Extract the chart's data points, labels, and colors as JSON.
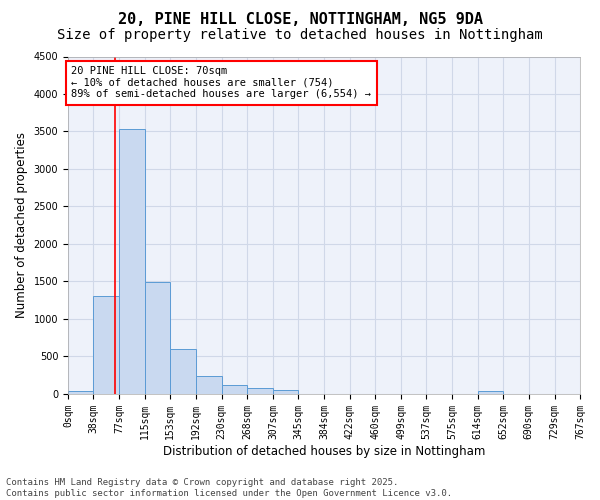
{
  "title_line1": "20, PINE HILL CLOSE, NOTTINGHAM, NG5 9DA",
  "title_line2": "Size of property relative to detached houses in Nottingham",
  "xlabel": "Distribution of detached houses by size in Nottingham",
  "ylabel": "Number of detached properties",
  "bar_edges": [
    0,
    38,
    77,
    115,
    153,
    192,
    230,
    268,
    307,
    345,
    384,
    422,
    460,
    499,
    537,
    575,
    614,
    652,
    690,
    729,
    767
  ],
  "bar_values": [
    40,
    1300,
    3530,
    1490,
    595,
    245,
    120,
    80,
    50,
    0,
    0,
    0,
    0,
    0,
    0,
    0,
    40,
    0,
    0,
    0
  ],
  "bar_color": "#c9d9f0",
  "bar_edge_color": "#5b9bd5",
  "grid_color": "#d0d8e8",
  "background_color": "#eef2fa",
  "property_line_x": 70,
  "property_line_color": "red",
  "annotation_box_text": "20 PINE HILL CLOSE: 70sqm\n← 10% of detached houses are smaller (754)\n89% of semi-detached houses are larger (6,554) →",
  "ylim": [
    0,
    4500
  ],
  "yticks": [
    0,
    500,
    1000,
    1500,
    2000,
    2500,
    3000,
    3500,
    4000,
    4500
  ],
  "tick_labels": [
    "0sqm",
    "38sqm",
    "77sqm",
    "115sqm",
    "153sqm",
    "192sqm",
    "230sqm",
    "268sqm",
    "307sqm",
    "345sqm",
    "384sqm",
    "422sqm",
    "460sqm",
    "499sqm",
    "537sqm",
    "575sqm",
    "614sqm",
    "652sqm",
    "690sqm",
    "729sqm",
    "767sqm"
  ],
  "footer_text": "Contains HM Land Registry data © Crown copyright and database right 2025.\nContains public sector information licensed under the Open Government Licence v3.0.",
  "title_fontsize": 11,
  "subtitle_fontsize": 10,
  "axis_label_fontsize": 8.5,
  "tick_fontsize": 7,
  "footer_fontsize": 6.5
}
